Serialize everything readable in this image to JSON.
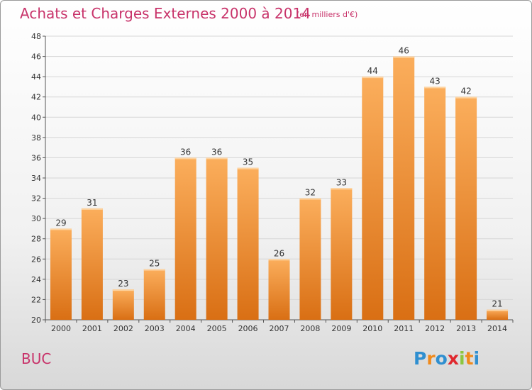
{
  "title": "Achats et Charges Externes 2000 à 2014",
  "subtitle": "(en milliers d'€)",
  "commune": "BUC",
  "brand": {
    "letters": [
      "P",
      "r",
      "o",
      "x",
      "i",
      "t",
      "i"
    ],
    "colors": [
      "#2f8fd0",
      "#f08a1c",
      "#2f8fd0",
      "#e0282e",
      "#8cc63f",
      "#f08a1c",
      "#2f8fd0"
    ]
  },
  "colors": {
    "bar_light": "#fbae5c",
    "bar_dark": "#d96f14",
    "title": "#c8336a",
    "grid": "#d6d6d6"
  },
  "chart_data": {
    "type": "bar",
    "title": "Achats et Charges Externes 2000 à 2014",
    "subtitle": "(en milliers d'€)",
    "categories": [
      "2000",
      "2001",
      "2002",
      "2003",
      "2004",
      "2005",
      "2006",
      "2007",
      "2008",
      "2009",
      "2010",
      "2011",
      "2012",
      "2013",
      "2014"
    ],
    "values": [
      29,
      31,
      23,
      25,
      36,
      36,
      35,
      26,
      32,
      33,
      44,
      46,
      43,
      42,
      21
    ],
    "ylim": [
      20,
      48
    ],
    "yticks": [
      20,
      22,
      24,
      26,
      28,
      30,
      32,
      34,
      36,
      38,
      40,
      42,
      44,
      46,
      48
    ],
    "grid": true,
    "data_labels": true
  }
}
